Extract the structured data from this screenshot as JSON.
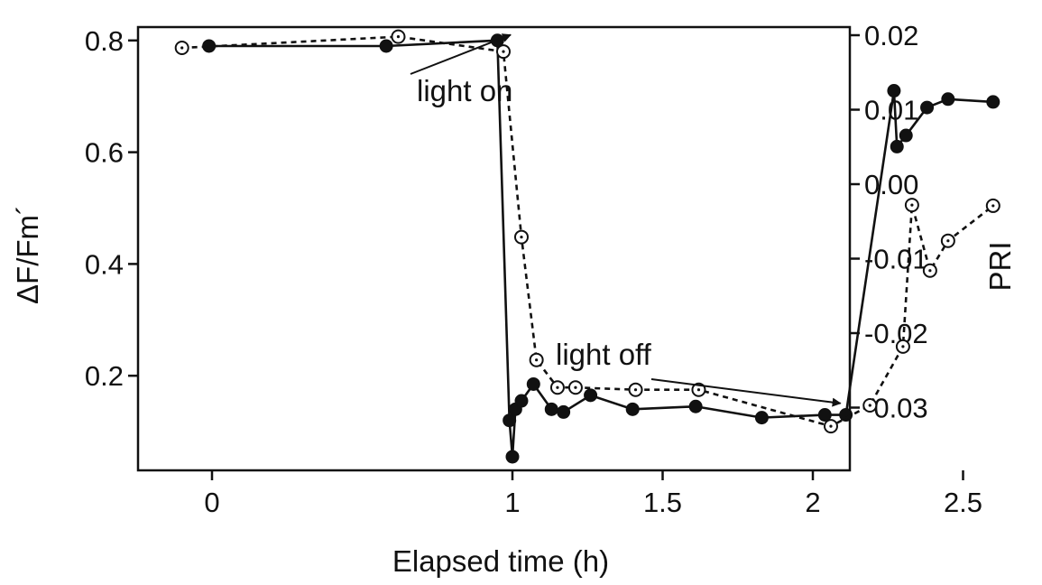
{
  "chart_data": {
    "type": "line",
    "title": "",
    "xlabel": "Elapsed time (h)",
    "ylabel_left": "ΔF/Fm´",
    "ylabel_right": "PRI",
    "xlim": [
      -0.2,
      2.63
    ],
    "ylim_left": [
      0.05,
      0.81
    ],
    "ylim_right": [
      -0.0375,
      0.022
    ],
    "xticks": [
      0,
      1,
      1.5,
      2,
      2.5
    ],
    "xtick_labels": [
      "0",
      "1",
      "1.5",
      "2",
      "2.5"
    ],
    "yticks_left": [
      0.2,
      0.4,
      0.6,
      0.8
    ],
    "ytick_labels_left": [
      "0.2",
      "0.4",
      "0.6",
      "0.8"
    ],
    "yticks_right": [
      -0.03,
      -0.02,
      -0.01,
      0.0,
      0.01,
      0.02
    ],
    "ytick_labels_right": [
      "-0.03",
      "-0.02",
      "-0.01",
      "0.00",
      "0.01",
      "0.02"
    ],
    "grid": false,
    "series": [
      {
        "style": "solid line, filled circles",
        "axis": "left",
        "color": "#111111",
        "points": [
          [
            -0.01,
            0.79
          ],
          [
            0.58,
            0.79
          ],
          [
            0.95,
            0.8
          ],
          [
            0.99,
            0.12
          ],
          [
            1.0,
            0.055
          ],
          [
            1.01,
            0.14
          ],
          [
            1.03,
            0.155
          ],
          [
            1.07,
            0.185
          ],
          [
            1.13,
            0.14
          ],
          [
            1.17,
            0.135
          ],
          [
            1.26,
            0.165
          ],
          [
            1.4,
            0.14
          ],
          [
            1.61,
            0.145
          ],
          [
            1.83,
            0.125
          ],
          [
            2.04,
            0.13
          ],
          [
            2.11,
            0.13
          ],
          [
            2.27,
            0.71
          ],
          [
            2.28,
            0.61
          ],
          [
            2.31,
            0.63
          ],
          [
            2.38,
            0.68
          ],
          [
            2.45,
            0.695
          ],
          [
            2.6,
            0.69
          ]
        ]
      },
      {
        "style": "dashed line, open circles",
        "axis": "right",
        "color": "#111111",
        "points": [
          [
            -0.1,
            0.0183
          ],
          [
            0.62,
            0.0198
          ],
          [
            0.97,
            0.0178
          ],
          [
            1.03,
            -0.0071
          ],
          [
            1.08,
            -0.0236
          ],
          [
            1.15,
            -0.0273
          ],
          [
            1.21,
            -0.0273
          ],
          [
            1.41,
            -0.0276
          ],
          [
            1.62,
            -0.0276
          ],
          [
            2.06,
            -0.0325
          ],
          [
            2.19,
            -0.0297
          ],
          [
            2.3,
            -0.0218
          ],
          [
            2.33,
            -0.0028
          ],
          [
            2.39,
            -0.0116
          ],
          [
            2.45,
            -0.0076
          ],
          [
            2.6,
            -0.0029
          ]
        ]
      }
    ],
    "annotations": [
      {
        "text": "light on",
        "at": [
          0.97,
          0.7906
        ]
      },
      {
        "text": "light off",
        "at": [
          2.11,
          0.128
        ]
      }
    ]
  }
}
